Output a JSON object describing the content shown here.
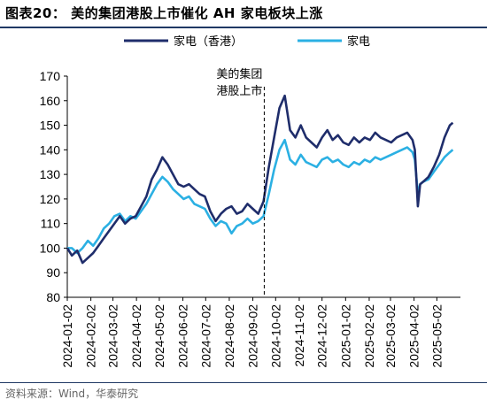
{
  "title": "图表20：  美的集团港股上市催化 AH 家电板块上涨",
  "source": "资料来源：Wind，华泰研究",
  "chart_data": {
    "type": "line",
    "title": "",
    "xlabel": "",
    "ylabel": "",
    "ylim": [
      80,
      170
    ],
    "yticks": [
      80,
      90,
      100,
      110,
      120,
      130,
      140,
      150,
      160,
      170
    ],
    "categories": [
      "2024-01-02",
      "2024-02-02",
      "2024-03-02",
      "2024-04-02",
      "2024-05-02",
      "2024-06-02",
      "2024-07-02",
      "2024-08-02",
      "2024-09-02",
      "2024-10-02",
      "2024-11-02",
      "2024-12-02",
      "2025-01-02",
      "2025-02-02",
      "2025-03-02",
      "2025-04-02",
      "2025-05-02"
    ],
    "legend_position": "top",
    "annotation": {
      "text_line1": "美的集团",
      "text_line2": "港股上市",
      "x": "2024-09-17"
    },
    "series": [
      {
        "name": "家电（香港）",
        "color": "#1f2d6b",
        "points": [
          [
            "2024-01-02",
            100
          ],
          [
            "2024-01-08",
            97
          ],
          [
            "2024-01-15",
            99
          ],
          [
            "2024-01-22",
            94
          ],
          [
            "2024-01-29",
            96
          ],
          [
            "2024-02-05",
            98
          ],
          [
            "2024-02-12",
            101
          ],
          [
            "2024-02-19",
            104
          ],
          [
            "2024-02-26",
            107
          ],
          [
            "2024-03-04",
            110
          ],
          [
            "2024-03-11",
            113
          ],
          [
            "2024-03-18",
            110
          ],
          [
            "2024-03-25",
            112
          ],
          [
            "2024-04-01",
            113
          ],
          [
            "2024-04-08",
            117
          ],
          [
            "2024-04-15",
            121
          ],
          [
            "2024-04-22",
            128
          ],
          [
            "2024-04-29",
            132
          ],
          [
            "2024-05-06",
            137
          ],
          [
            "2024-05-13",
            134
          ],
          [
            "2024-05-20",
            130
          ],
          [
            "2024-05-27",
            126
          ],
          [
            "2024-06-03",
            125
          ],
          [
            "2024-06-10",
            126
          ],
          [
            "2024-06-17",
            124
          ],
          [
            "2024-06-24",
            122
          ],
          [
            "2024-07-01",
            121
          ],
          [
            "2024-07-08",
            115
          ],
          [
            "2024-07-15",
            111
          ],
          [
            "2024-07-22",
            114
          ],
          [
            "2024-07-29",
            116
          ],
          [
            "2024-08-05",
            117
          ],
          [
            "2024-08-12",
            114
          ],
          [
            "2024-08-19",
            115
          ],
          [
            "2024-08-26",
            118
          ],
          [
            "2024-09-02",
            116
          ],
          [
            "2024-09-09",
            114
          ],
          [
            "2024-09-16",
            119
          ],
          [
            "2024-09-23",
            133
          ],
          [
            "2024-09-30",
            145
          ],
          [
            "2024-10-07",
            157
          ],
          [
            "2024-10-14",
            162
          ],
          [
            "2024-10-21",
            148
          ],
          [
            "2024-10-28",
            145
          ],
          [
            "2024-11-04",
            150
          ],
          [
            "2024-11-11",
            145
          ],
          [
            "2024-11-18",
            143
          ],
          [
            "2024-11-25",
            141
          ],
          [
            "2024-12-02",
            145
          ],
          [
            "2024-12-09",
            148
          ],
          [
            "2024-12-16",
            144
          ],
          [
            "2024-12-23",
            146
          ],
          [
            "2024-12-30",
            143
          ],
          [
            "2025-01-06",
            142
          ],
          [
            "2025-01-13",
            145
          ],
          [
            "2025-01-20",
            143
          ],
          [
            "2025-01-27",
            145
          ],
          [
            "2025-02-03",
            144
          ],
          [
            "2025-02-10",
            147
          ],
          [
            "2025-02-17",
            145
          ],
          [
            "2025-02-24",
            144
          ],
          [
            "2025-03-03",
            143
          ],
          [
            "2025-03-10",
            145
          ],
          [
            "2025-03-17",
            146
          ],
          [
            "2025-03-24",
            147
          ],
          [
            "2025-03-31",
            144
          ],
          [
            "2025-04-03",
            140
          ],
          [
            "2025-04-07",
            117
          ],
          [
            "2025-04-10",
            126
          ],
          [
            "2025-04-14",
            127
          ],
          [
            "2025-04-21",
            129
          ],
          [
            "2025-04-28",
            133
          ],
          [
            "2025-05-05",
            138
          ],
          [
            "2025-05-12",
            145
          ],
          [
            "2025-05-19",
            150
          ],
          [
            "2025-05-23",
            151
          ]
        ]
      },
      {
        "name": "家电",
        "color": "#2bb0e3",
        "points": [
          [
            "2024-01-02",
            100
          ],
          [
            "2024-01-08",
            100
          ],
          [
            "2024-01-15",
            98
          ],
          [
            "2024-01-22",
            100
          ],
          [
            "2024-01-29",
            103
          ],
          [
            "2024-02-05",
            101
          ],
          [
            "2024-02-12",
            104
          ],
          [
            "2024-02-19",
            108
          ],
          [
            "2024-02-26",
            110
          ],
          [
            "2024-03-04",
            113
          ],
          [
            "2024-03-11",
            114
          ],
          [
            "2024-03-18",
            111
          ],
          [
            "2024-03-25",
            113
          ],
          [
            "2024-04-01",
            112
          ],
          [
            "2024-04-08",
            115
          ],
          [
            "2024-04-15",
            118
          ],
          [
            "2024-04-22",
            122
          ],
          [
            "2024-04-29",
            126
          ],
          [
            "2024-05-06",
            129
          ],
          [
            "2024-05-13",
            127
          ],
          [
            "2024-05-20",
            124
          ],
          [
            "2024-05-27",
            122
          ],
          [
            "2024-06-03",
            120
          ],
          [
            "2024-06-10",
            121
          ],
          [
            "2024-06-17",
            118
          ],
          [
            "2024-06-24",
            117
          ],
          [
            "2024-07-01",
            116
          ],
          [
            "2024-07-08",
            112
          ],
          [
            "2024-07-15",
            109
          ],
          [
            "2024-07-22",
            111
          ],
          [
            "2024-07-29",
            110
          ],
          [
            "2024-08-05",
            106
          ],
          [
            "2024-08-12",
            109
          ],
          [
            "2024-08-19",
            110
          ],
          [
            "2024-08-26",
            112
          ],
          [
            "2024-09-02",
            110
          ],
          [
            "2024-09-09",
            111
          ],
          [
            "2024-09-16",
            113
          ],
          [
            "2024-09-23",
            122
          ],
          [
            "2024-09-30",
            132
          ],
          [
            "2024-10-07",
            140
          ],
          [
            "2024-10-14",
            144
          ],
          [
            "2024-10-21",
            136
          ],
          [
            "2024-10-28",
            134
          ],
          [
            "2024-11-04",
            138
          ],
          [
            "2024-11-11",
            135
          ],
          [
            "2024-11-18",
            134
          ],
          [
            "2024-11-25",
            133
          ],
          [
            "2024-12-02",
            136
          ],
          [
            "2024-12-09",
            137
          ],
          [
            "2024-12-16",
            135
          ],
          [
            "2024-12-23",
            136
          ],
          [
            "2024-12-30",
            134
          ],
          [
            "2025-01-06",
            133
          ],
          [
            "2025-01-13",
            135
          ],
          [
            "2025-01-20",
            134
          ],
          [
            "2025-01-27",
            136
          ],
          [
            "2025-02-03",
            135
          ],
          [
            "2025-02-10",
            137
          ],
          [
            "2025-02-17",
            136
          ],
          [
            "2025-02-24",
            137
          ],
          [
            "2025-03-03",
            138
          ],
          [
            "2025-03-10",
            139
          ],
          [
            "2025-03-17",
            140
          ],
          [
            "2025-03-24",
            141
          ],
          [
            "2025-03-31",
            139
          ],
          [
            "2025-04-03",
            136
          ],
          [
            "2025-04-07",
            122
          ],
          [
            "2025-04-10",
            126
          ],
          [
            "2025-04-14",
            127
          ],
          [
            "2025-04-21",
            128
          ],
          [
            "2025-04-28",
            131
          ],
          [
            "2025-05-05",
            134
          ],
          [
            "2025-05-12",
            137
          ],
          [
            "2025-05-19",
            139
          ],
          [
            "2025-05-23",
            140
          ]
        ]
      }
    ]
  }
}
